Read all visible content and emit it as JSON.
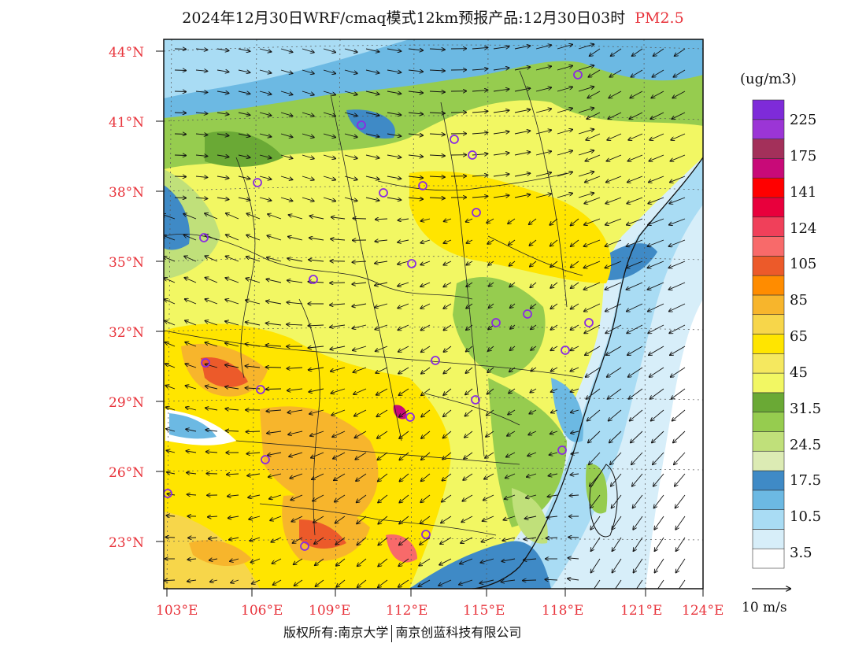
{
  "title": {
    "main": "2024年12月30日WRF/cmaq模式12km预报产品:12月30日03时",
    "species": "PM2.5"
  },
  "map": {
    "lat_labels": [
      "44°N",
      "41°N",
      "38°N",
      "35°N",
      "32°N",
      "29°N",
      "26°N",
      "23°N"
    ],
    "lon_labels": [
      "103°E",
      "106°E",
      "109°E",
      "112°E",
      "115°E",
      "118°E",
      "121°E",
      "124°E"
    ],
    "station_marker": "circle-station-icon",
    "station_color": "#8a2be2"
  },
  "legend": {
    "unit": "(ug/m3)",
    "labels": [
      "225",
      "175",
      "141",
      "124",
      "105",
      "85",
      "65",
      "45",
      "31.5",
      "24.5",
      "17.5",
      "10.5",
      "3.5"
    ],
    "colors": [
      "#ffffff",
      "#d7eef9",
      "#a9dcf4",
      "#6cb9e3",
      "#3f8ac6",
      "#dcebb4",
      "#c0e07a",
      "#96cc4f",
      "#6aa935",
      "#f2f763",
      "#f5e85f",
      "#ffe500",
      "#f7d64a",
      "#f7b52c",
      "#ff8c00",
      "#ec5a2a",
      "#f86a6a",
      "#f0405a",
      "#e8003c",
      "#ff0000",
      "#c80a78",
      "#a3305a",
      "#9b35d6",
      "#7e2bd9"
    ]
  },
  "scale": {
    "label": "10 m/s",
    "arrow_icon": "wind-scale-arrow-icon"
  },
  "footer": {
    "left": "版权所有:南京大学",
    "right": "南京创蓝科技有限公司"
  }
}
